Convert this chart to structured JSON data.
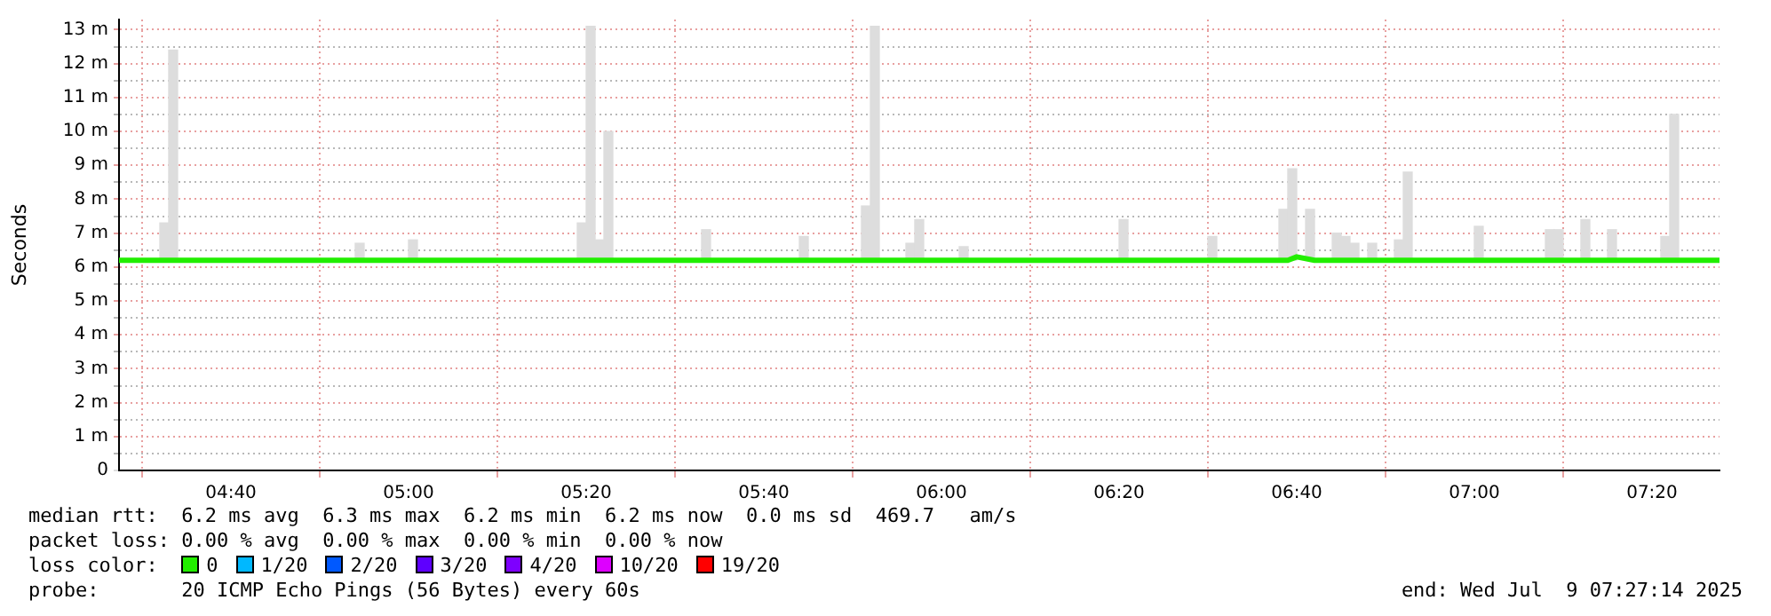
{
  "chart_data": {
    "type": "bar",
    "ylabel": "Seconds",
    "legend_title": "loss color:",
    "legend": "bottom",
    "grid": true,
    "marker": "none",
    "line_style": "solid",
    "xlim": [
      4.4567,
      7.46
    ],
    "ylim": [
      0,
      13.3
    ],
    "xticks": [
      {
        "value": 4.6667,
        "label": "04:40"
      },
      {
        "value": 5,
        "label": "05:00"
      },
      {
        "value": 5.3333,
        "label": "05:20"
      },
      {
        "value": 5.6667,
        "label": "05:40"
      },
      {
        "value": 6,
        "label": "06:00"
      },
      {
        "value": 6.3333,
        "label": "06:20"
      },
      {
        "value": 6.6667,
        "label": "06:40"
      },
      {
        "value": 7,
        "label": "07:00"
      },
      {
        "value": 7.3333,
        "label": "07:20"
      }
    ],
    "yticks": [
      0,
      {
        "value": 0.5,
        "label": null
      },
      {
        "value": 1,
        "label": "1 m"
      },
      {
        "value": 1.5,
        "label": null
      },
      {
        "value": 2,
        "label": "2 m"
      },
      {
        "value": 2.5,
        "label": null
      },
      {
        "value": 3,
        "label": "3 m"
      },
      {
        "value": 3.5,
        "label": null
      },
      {
        "value": 4,
        "label": "4 m"
      },
      {
        "value": 4.5,
        "label": null
      },
      {
        "value": 5,
        "label": "5 m"
      },
      {
        "value": 5.5,
        "label": null
      },
      {
        "value": 6,
        "label": "6 m"
      },
      {
        "value": 6.5,
        "label": null
      },
      {
        "value": 7,
        "label": "7 m"
      },
      {
        "value": 7.5,
        "label": null
      },
      {
        "value": 8,
        "label": "8 m"
      },
      {
        "value": 8.5,
        "label": null
      },
      {
        "value": 9,
        "label": "9 m"
      },
      {
        "value": 9.5,
        "label": null
      },
      {
        "value": 10,
        "label": "10 m"
      },
      {
        "value": 10.5,
        "label": null
      },
      {
        "value": 11,
        "label": "11 m"
      },
      {
        "value": 11.5,
        "label": null
      },
      {
        "value": 12,
        "label": "12 m"
      },
      {
        "value": 12.5,
        "label": null
      },
      {
        "value": 13,
        "label": "13 m"
      }
    ],
    "series": [
      {
        "color": "#dddddd",
        "x": [
          4.5417,
          4.5583,
          4.9083,
          5.0083,
          5.325,
          5.3417,
          5.3583,
          5.375,
          5.5583,
          5.7417,
          5.8583,
          5.875,
          5.9417,
          5.9583,
          6.0417,
          6.3417,
          6.5083,
          6.6417,
          6.6583,
          6.6917,
          6.7417,
          6.7583,
          6.775,
          6.8083,
          6.8583,
          6.875,
          7.0083,
          7.1417,
          7.1583,
          7.2083,
          7.2583,
          7.3583,
          7.375
        ],
        "base": [
          6.2,
          6.2,
          6.2,
          6.2,
          6.2,
          6.2,
          6.2,
          6.2,
          6.2,
          6.2,
          6.2,
          6.2,
          6.2,
          6.2,
          6.2,
          6.2,
          6.2,
          6.2,
          6.2,
          6.2,
          6.2,
          6.2,
          6.2,
          6.2,
          6.2,
          6.2,
          6.2,
          6.2,
          6.2,
          6.2,
          6.2,
          6.2,
          6.2
        ],
        "values": [
          1.1,
          6.2,
          0.5,
          0.6,
          1.1,
          6.9,
          0.6,
          3.8,
          0.9,
          0.7,
          1.6,
          6.9,
          0.5,
          1.2,
          0.4,
          1.2,
          0.7,
          1.5,
          2.7,
          1.5,
          0.8,
          0.7,
          0.5,
          0.5,
          0.6,
          2.6,
          1.0,
          0.9,
          0.9,
          1.2,
          0.9,
          0.7,
          4.3
        ]
      },
      {
        "type": "line",
        "name": "0",
        "color": "#22ee00",
        "x": [
          4.4567,
          6.65,
          6.6667,
          6.7,
          7.46
        ],
        "values": [
          6.2,
          6.2,
          6.3,
          6.2,
          6.2
        ]
      },
      {
        "type": "line",
        "name": "1/20",
        "color": "#00b8ff"
      },
      {
        "type": "line",
        "name": "2/20",
        "color": "#0059ff"
      },
      {
        "type": "line",
        "name": "3/20",
        "color": "#5e00ff"
      },
      {
        "type": "line",
        "name": "4/20",
        "color": "#7e00ff"
      },
      {
        "type": "line",
        "name": "10/20",
        "color": "#dd00ff"
      },
      {
        "type": "line",
        "name": "19/20",
        "color": "#ff0000"
      }
    ],
    "annotations": [
      "median rtt:  6.2 ms avg  6.3 ms max  6.2 ms min  6.2 ms now  0.0 ms sd  469.7   am/s",
      "packet loss: 0.00 % avg  0.00 % max  0.00 % min  0.00 % now",
      "probe:       20 ICMP Echo Pings (56 Bytes) every 60s",
      "end: Wed Jul  9 07:27:14 2025"
    ]
  }
}
